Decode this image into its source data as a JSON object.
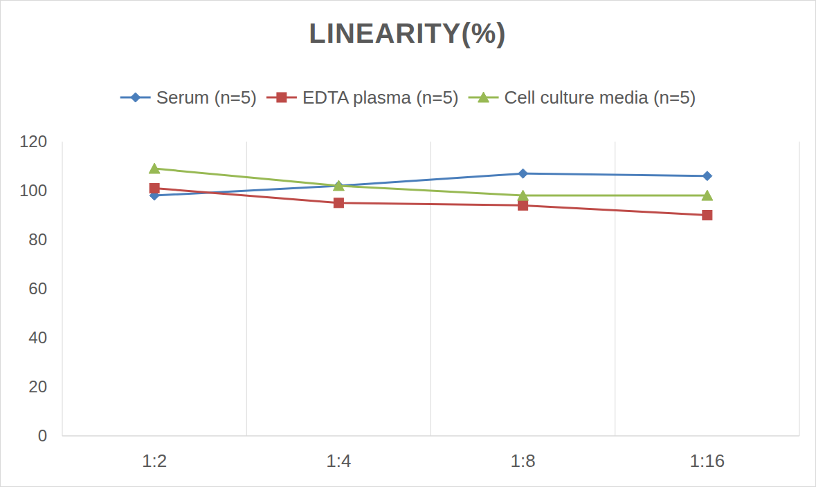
{
  "chart_data": {
    "type": "line",
    "title": "LINEARITY(%)",
    "categories": [
      "1:2",
      "1:4",
      "1:8",
      "1:16"
    ],
    "series": [
      {
        "name": "Serum (n=5)",
        "color": "#4a7ebb",
        "marker": "diamond",
        "values": [
          98,
          102,
          107,
          106
        ]
      },
      {
        "name": "EDTA plasma (n=5)",
        "color": "#be4b48",
        "marker": "square",
        "values": [
          101,
          95,
          94,
          90
        ]
      },
      {
        "name": "Cell culture media (n=5)",
        "color": "#98b954",
        "marker": "triangle",
        "values": [
          109,
          102,
          98,
          98
        ]
      }
    ],
    "ylim": [
      0,
      120
    ],
    "yticks": [
      0,
      20,
      40,
      60,
      80,
      100,
      120
    ],
    "grid": true,
    "legend": "top"
  }
}
